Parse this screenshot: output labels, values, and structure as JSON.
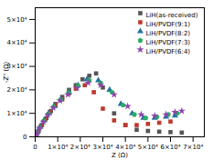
{
  "chart_data": {
    "type": "scatter",
    "xlabel": "Z (Ω)",
    "ylabel": "-Z\" (Ω)",
    "xlim": [
      0,
      75000
    ],
    "ylim": [
      0,
      55000
    ],
    "xticks": [
      0,
      {
        "value": 10000,
        "label": "1×10⁴"
      },
      {
        "value": 20000,
        "label": "2×10⁴"
      },
      {
        "value": 30000,
        "label": "3×10⁴"
      },
      {
        "value": 40000,
        "label": "4×10⁴"
      },
      {
        "value": 50000,
        "label": "5×10⁴"
      },
      {
        "value": 60000,
        "label": "6×10⁴"
      },
      {
        "value": 70000,
        "label": "7×10⁴"
      }
    ],
    "yticks": [
      0,
      {
        "value": 10000,
        "label": "1×10⁴"
      },
      {
        "value": 20000,
        "label": "2×10⁴"
      },
      {
        "value": 30000,
        "label": "3×10⁴"
      },
      {
        "value": 40000,
        "label": "4×10⁴"
      },
      {
        "value": 50000,
        "label": "5×10⁴"
      }
    ],
    "grid": false,
    "legend": "upper right",
    "series": [
      {
        "name": "LiH(as-received)",
        "color": "#555555",
        "marker": "square",
        "x": [
          500,
          1500,
          3000,
          5000,
          7000,
          9000,
          12000,
          15000,
          18000,
          21000,
          24000,
          27000,
          30000,
          35000,
          40000,
          45000,
          50000,
          55000,
          60000,
          65000
        ],
        "values": [
          800,
          2500,
          5000,
          8000,
          11000,
          14000,
          17000,
          20000,
          22000,
          24500,
          26000,
          27000,
          21000,
          10000,
          5000,
          3000,
          2500,
          2200,
          2000,
          1800
        ]
      },
      {
        "name": "LiH/PVDF(9:1)",
        "color": "#c0392b",
        "marker": "square",
        "x": [
          400,
          1200,
          2500,
          4500,
          6500,
          9000,
          12000,
          15000,
          18000,
          22000,
          26000,
          30000,
          35000,
          40000,
          45000,
          50000,
          55000,
          60000
        ],
        "values": [
          700,
          2200,
          4500,
          7500,
          10500,
          13500,
          16000,
          18500,
          20500,
          22000,
          19000,
          12000,
          7000,
          5000,
          5000,
          5500,
          6000,
          6500
        ]
      },
      {
        "name": "LiH/PVDF(8:2)",
        "color": "#2471a3",
        "marker": "triangle",
        "x": [
          300,
          1000,
          2200,
          4000,
          6000,
          8500,
          11500,
          15000,
          19000,
          23000,
          28000,
          33000,
          38000,
          43000,
          48000,
          53000,
          58000,
          62000
        ],
        "values": [
          600,
          2000,
          4200,
          7000,
          10000,
          13000,
          16000,
          19000,
          22000,
          24500,
          24000,
          20000,
          14000,
          10000,
          8000,
          8000,
          8500,
          9000
        ]
      },
      {
        "name": "LiH/PVDF(7:3)",
        "color": "#27ae60",
        "marker": "pentagon",
        "x": [
          300,
          1000,
          2000,
          3800,
          5800,
          8200,
          11200,
          14800,
          19000,
          24000,
          29000,
          34000,
          39000,
          44000,
          49000,
          54000,
          59000,
          63000
        ],
        "values": [
          500,
          1800,
          4000,
          6800,
          9800,
          12800,
          15800,
          18800,
          21800,
          24000,
          23000,
          19000,
          13500,
          9500,
          8000,
          8500,
          9500,
          10000
        ]
      },
      {
        "name": "LiH/PVDF(6:4)",
        "color": "#8e44ad",
        "marker": "star",
        "x": [
          250,
          900,
          1900,
          3600,
          5600,
          8000,
          11000,
          14500,
          18500,
          23500,
          29000,
          35000,
          41000,
          47000,
          53000,
          58000,
          62000,
          65000
        ],
        "values": [
          400,
          1600,
          3700,
          6400,
          9400,
          12400,
          15400,
          18000,
          20800,
          23000,
          22000,
          18000,
          13000,
          9500,
          9000,
          9500,
          10500,
          11000
        ]
      }
    ]
  }
}
